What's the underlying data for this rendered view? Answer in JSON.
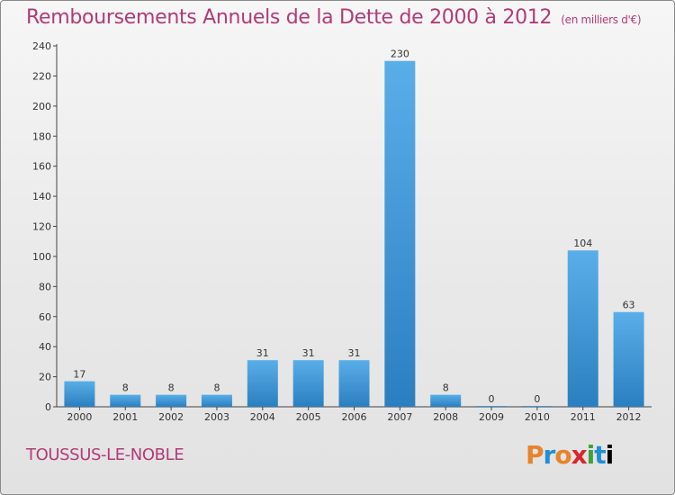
{
  "header": {
    "title": "Remboursements Annuels de la Dette de 2000 à 2012",
    "unit": "(en milliers d'€)"
  },
  "footer": {
    "place": "TOUSSUS-LE-NOBLE",
    "logo": [
      "P",
      "r",
      "o",
      "x",
      "i",
      "t",
      "i"
    ]
  },
  "colors": {
    "title": "#b23a78",
    "bar_top": "#5aaee8",
    "bar_bottom": "#2a7fc0"
  },
  "chart_data": {
    "type": "bar",
    "categories": [
      "2000",
      "2001",
      "2002",
      "2003",
      "2004",
      "2005",
      "2006",
      "2007",
      "2008",
      "2009",
      "2010",
      "2011",
      "2012"
    ],
    "values": [
      17,
      8,
      8,
      8,
      31,
      31,
      31,
      230,
      8,
      0,
      0,
      104,
      63
    ],
    "title": "Remboursements Annuels de la Dette de 2000 à 2012",
    "xlabel": "",
    "ylabel": "",
    "ylim": [
      0,
      240
    ],
    "yticks": [
      0,
      20,
      40,
      60,
      80,
      100,
      120,
      140,
      160,
      180,
      200,
      220,
      240
    ],
    "grid": false,
    "legend": "none"
  }
}
